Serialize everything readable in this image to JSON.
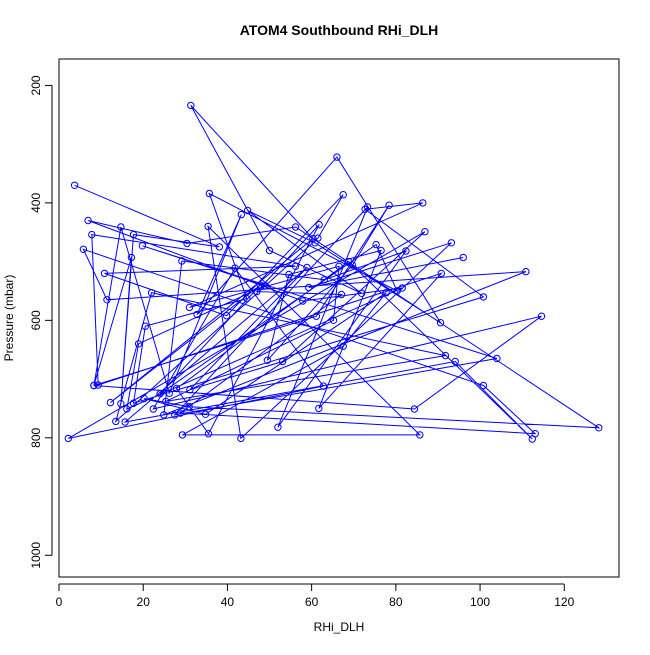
{
  "chart_data": {
    "type": "line",
    "title": "ATOM4 Southbound RHi_DLH",
    "xlabel": "RHi_DLH",
    "ylabel": "Pressure (mbar)",
    "xlim": [
      0,
      133
    ],
    "ylim": [
      1037,
      155
    ],
    "y_reversed": true,
    "x_ticks": [
      0,
      20,
      40,
      60,
      80,
      100,
      120
    ],
    "y_ticks": [
      200,
      400,
      600,
      800,
      1000
    ],
    "grid": false,
    "legend": "none",
    "color": "#0000ff",
    "series": [
      {
        "points": [
          [
            3.7,
            370
          ],
          [
            38.1,
            475
          ],
          [
            17.7,
            454
          ],
          [
            14.7,
            742
          ],
          [
            17.2,
            493
          ],
          [
            8.3,
            711
          ],
          [
            14.7,
            441
          ],
          [
            26.2,
            724
          ],
          [
            43.3,
            420
          ],
          [
            32.8,
            590
          ],
          [
            66.0,
            322
          ],
          [
            90.6,
            604
          ],
          [
            60.8,
            468
          ],
          [
            44.8,
            413
          ],
          [
            71.9,
            554
          ],
          [
            50.0,
            481
          ],
          [
            31.3,
            234
          ],
          [
            60.3,
            461
          ],
          [
            12.2,
            740
          ],
          [
            47.8,
            540
          ],
          [
            24.0,
            725
          ],
          [
            75.3,
            471
          ],
          [
            80.3,
            550
          ],
          [
            35.7,
            384
          ],
          [
            44.6,
            563
          ],
          [
            20.5,
            610
          ],
          [
            17.7,
            741
          ],
          [
            100.8,
            560
          ],
          [
            72.7,
            411
          ],
          [
            86.4,
            400
          ],
          [
            31.0,
            578
          ],
          [
            66.5,
            508
          ],
          [
            65.2,
            600
          ],
          [
            25.4,
            738
          ],
          [
            91.8,
            660
          ],
          [
            22.0,
            553
          ],
          [
            13.5,
            772
          ],
          [
            61.5,
            460
          ],
          [
            67.5,
            386
          ],
          [
            39.8,
            592
          ],
          [
            10.8,
            520
          ],
          [
            56.2,
            508
          ],
          [
            7.8,
            454
          ],
          [
            9.3,
            710
          ],
          [
            90.8,
            520
          ],
          [
            61.7,
            750
          ],
          [
            76.5,
            481
          ],
          [
            54.6,
            522
          ],
          [
            49.5,
            668
          ],
          [
            69.7,
            506
          ],
          [
            78.4,
            404
          ],
          [
            61.1,
            593
          ],
          [
            8.3,
            711
          ],
          [
            84.4,
            751
          ],
          [
            114.6,
            593
          ],
          [
            22.4,
            751
          ],
          [
            41.8,
            511
          ],
          [
            62.8,
            712
          ],
          [
            2.2,
            801
          ],
          [
            86.9,
            449
          ],
          [
            53.1,
            670
          ],
          [
            31.1,
            718
          ],
          [
            58.9,
            510
          ],
          [
            15.7,
            773
          ],
          [
            94.1,
            670
          ],
          [
            112.4,
            802
          ],
          [
            68.8,
            500
          ],
          [
            27.9,
            716
          ],
          [
            35.5,
            793
          ],
          [
            61.8,
            437
          ],
          [
            47.0,
            551
          ],
          [
            67.1,
            556
          ],
          [
            28.8,
            758
          ],
          [
            113.1,
            793
          ],
          [
            100.8,
            711
          ],
          [
            5.8,
            479
          ],
          [
            11.4,
            565
          ],
          [
            110.9,
            517
          ],
          [
            24.9,
            761
          ],
          [
            29.2,
            499
          ],
          [
            63.0,
            531
          ],
          [
            82.4,
            482
          ],
          [
            52.0,
            782
          ],
          [
            73.3,
            407
          ],
          [
            27.5,
            761
          ],
          [
            104.0,
            665
          ],
          [
            19.8,
            473
          ],
          [
            49.0,
            541
          ],
          [
            18.9,
            640
          ],
          [
            16.1,
            751
          ],
          [
            81.5,
            545
          ],
          [
            57.9,
            567
          ],
          [
            6.9,
            430
          ],
          [
            30.4,
            469
          ],
          [
            56.2,
            441
          ],
          [
            128.2,
            783
          ],
          [
            30.9,
            747
          ],
          [
            20.2,
            733
          ],
          [
            34.8,
            760
          ],
          [
            77.7,
            553
          ],
          [
            67.5,
            644
          ],
          [
            29.3,
            795
          ],
          [
            85.7,
            795
          ],
          [
            35.4,
            440
          ],
          [
            43.2,
            801
          ],
          [
            93.2,
            468
          ],
          [
            59.3,
            544
          ],
          [
            96.0,
            493
          ]
        ]
      }
    ]
  }
}
